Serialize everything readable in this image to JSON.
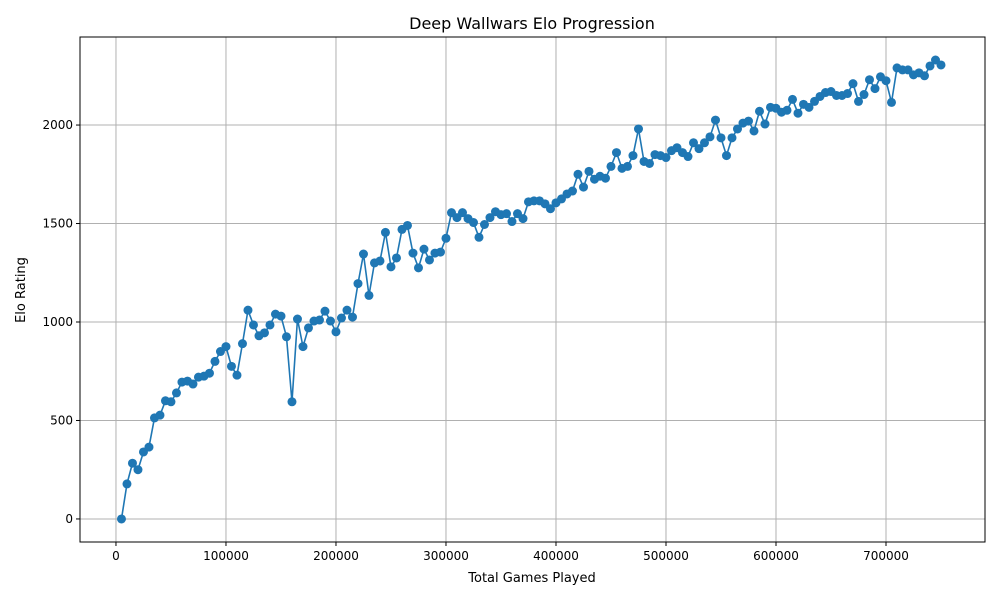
{
  "chart_data": {
    "type": "line",
    "title": "Deep Wallwars Elo Progression",
    "xlabel": "Total Games Played",
    "ylabel": "Elo Rating",
    "xlim": [
      -32700,
      790000
    ],
    "ylim": [
      -117,
      2447
    ],
    "xticks": [
      0,
      100000,
      200000,
      300000,
      400000,
      500000,
      600000,
      700000
    ],
    "yticks": [
      0,
      500,
      1000,
      1500,
      2000
    ],
    "grid": true,
    "marker": "circle",
    "color": "#1f77b4",
    "x_start": 5000,
    "x_step": 5000,
    "values": [
      0,
      178,
      283,
      250,
      340,
      365,
      513,
      527,
      600,
      595,
      640,
      695,
      700,
      685,
      720,
      725,
      740,
      800,
      850,
      875,
      775,
      730,
      890,
      1060,
      985,
      930,
      945,
      985,
      1040,
      1030,
      925,
      595,
      1015,
      875,
      970,
      1005,
      1010,
      1055,
      1005,
      950,
      1020,
      1060,
      1025,
      1195,
      1345,
      1135,
      1300,
      1310,
      1455,
      1280,
      1325,
      1470,
      1490,
      1350,
      1275,
      1370,
      1315,
      1350,
      1355,
      1425,
      1555,
      1530,
      1555,
      1525,
      1505,
      1430,
      1495,
      1530,
      1560,
      1545,
      1550,
      1510,
      1550,
      1525,
      1610,
      1615,
      1615,
      1600,
      1575,
      1605,
      1625,
      1650,
      1665,
      1750,
      1685,
      1765,
      1725,
      1740,
      1730,
      1790,
      1860,
      1780,
      1790,
      1845,
      1980,
      1815,
      1805,
      1850,
      1845,
      1835,
      1870,
      1885,
      1860,
      1840,
      1910,
      1880,
      1910,
      1940,
      2025,
      1935,
      1845,
      1935,
      1980,
      2010,
      2020,
      1970,
      2070,
      2005,
      2090,
      2085,
      2065,
      2075,
      2130,
      2060,
      2105,
      2090,
      2120,
      2145,
      2165,
      2170,
      2150,
      2150,
      2160,
      2210,
      2120,
      2155,
      2230,
      2185,
      2245,
      2225,
      2115,
      2290,
      2280,
      2280,
      2255,
      2265,
      2250,
      2300,
      2330,
      2305
    ]
  }
}
